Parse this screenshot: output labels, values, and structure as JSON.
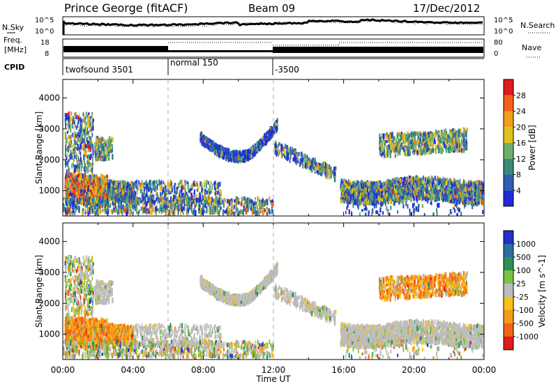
{
  "header": {
    "station": "Prince George (fitACF)",
    "beam": "Beam 09",
    "date": "17/Dec/2012"
  },
  "noise_panel": {
    "left_label": "N.Sky",
    "right_label": "N.Search",
    "left_ticks": [
      "10^5",
      "10^0"
    ],
    "right_ticks": [
      "10^5",
      "10^0"
    ]
  },
  "freq_panel": {
    "left_label_1": "Freq.",
    "left_label_2": "[MHz]",
    "left_ticks": [
      "18",
      "8"
    ],
    "right_label": "Nave",
    "right_ticks": [
      "80",
      "0"
    ]
  },
  "cpid_panel": {
    "label": "CPID",
    "modes": [
      {
        "name": "twofsound 3501",
        "start_hour": 0
      },
      {
        "name": "normal 150",
        "start_hour": 6
      },
      {
        "name": "-3500",
        "start_hour": 12
      }
    ]
  },
  "chart_data": [
    {
      "type": "heatmap",
      "title": "",
      "xlabel": "",
      "ylabel": "Slant Range [km]",
      "xlim": [
        0,
        24
      ],
      "ylim": [
        180,
        4600
      ],
      "yticks": [
        "1000",
        "2000",
        "3000",
        "4000"
      ],
      "colorbar": {
        "label": "Power [dB]",
        "ticks": [
          "4",
          "8",
          "12",
          "16",
          "20",
          "24",
          "28"
        ],
        "colors": [
          "#1f2bd8",
          "#2e5fb5",
          "#3b8a7a",
          "#6cb06c",
          "#e0c21d",
          "#f39c1e",
          "#f4611a",
          "#e01b1b"
        ]
      },
      "regions": [
        {
          "x": [
            0.1,
            4.0
          ],
          "y": [
            300,
            3500
          ],
          "value": "strong 16-30 dB backscatter"
        },
        {
          "x": [
            8.0,
            12.0
          ],
          "y": [
            1800,
            3000
          ],
          "value": "4-12 dB arc"
        },
        {
          "x": [
            16.0,
            24.0
          ],
          "y": [
            700,
            1600
          ],
          "value": "8-20 dB band"
        },
        {
          "x": [
            18.0,
            23.0
          ],
          "y": [
            2100,
            2800
          ],
          "value": "12-20 dB patch"
        }
      ]
    },
    {
      "type": "heatmap",
      "title": "",
      "xlabel": "Time UT",
      "ylabel": "Slant Range [km]",
      "xlim": [
        0,
        24
      ],
      "ylim": [
        180,
        4600
      ],
      "yticks": [
        "1000",
        "2000",
        "3000",
        "4000"
      ],
      "xticks": [
        "00:00",
        "04:00",
        "08:00",
        "12:00",
        "16:00",
        "20:00",
        "00:00"
      ],
      "colorbar": {
        "label": "Velocity [m s^-1]",
        "ticks": [
          "1000",
          "500",
          "100",
          "25",
          "-25",
          "-100",
          "-500",
          "-1000"
        ],
        "colors": [
          "#2030c8",
          "#2c6fa0",
          "#2f8f55",
          "#7ac242",
          "#bdbdbd",
          "#f5c218",
          "#f59a18",
          "#f26418",
          "#e01b1b"
        ]
      },
      "regions": [
        {
          "x": [
            0.1,
            4.0
          ],
          "y": [
            500,
            2000
          ],
          "value": "-100 to -500 m/s"
        },
        {
          "x": [
            8.0,
            12.0
          ],
          "y": [
            1800,
            3000
          ],
          "value": "ground scatter -25 to 25 m/s"
        },
        {
          "x": [
            16.0,
            24.0
          ],
          "y": [
            700,
            1600
          ],
          "value": "ground scatter"
        },
        {
          "x": [
            19.0,
            23.0
          ],
          "y": [
            2100,
            2800
          ],
          "value": "-100 to -500 m/s"
        }
      ]
    }
  ]
}
